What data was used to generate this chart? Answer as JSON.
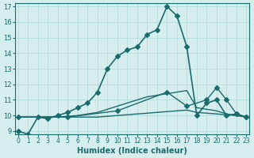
{
  "xlabel": "Humidex (Indice chaleur)",
  "ylabel": "",
  "background_color": "#d6eeee",
  "line_color": "#1a6b6b",
  "xlim": [
    0,
    23
  ],
  "ylim": [
    9,
    17
  ],
  "xticks": [
    0,
    1,
    2,
    3,
    4,
    5,
    6,
    7,
    8,
    9,
    10,
    11,
    12,
    13,
    14,
    15,
    16,
    17,
    18,
    19,
    20,
    21,
    22,
    23
  ],
  "yticks": [
    9,
    10,
    11,
    12,
    13,
    14,
    15,
    16,
    17
  ],
  "grid_color": "#b0d8d8",
  "series": [
    {
      "x": [
        0,
        1,
        2,
        3,
        4,
        5,
        6,
        7,
        8,
        9,
        10,
        11,
        12,
        13,
        14,
        15,
        16,
        17,
        18,
        19,
        20,
        21,
        22,
        23
      ],
      "y": [
        9.0,
        8.8,
        9.9,
        9.8,
        10.0,
        10.2,
        10.5,
        10.8,
        11.5,
        13.0,
        13.8,
        14.2,
        14.4,
        15.2,
        15.5,
        17.0,
        16.4,
        14.4,
        10.0,
        10.8,
        11.0,
        10.0,
        10.1,
        9.9
      ],
      "marker": "D",
      "markersize": 3,
      "linewidth": 1.2
    },
    {
      "x": [
        0,
        1,
        2,
        3,
        4,
        5,
        6,
        7,
        8,
        9,
        10,
        11,
        12,
        13,
        14,
        15,
        16,
        17,
        18,
        19,
        20,
        21,
        22,
        23
      ],
      "y": [
        9.9,
        9.9,
        9.9,
        9.9,
        9.9,
        9.95,
        10.0,
        10.1,
        10.2,
        10.4,
        10.6,
        10.8,
        11.0,
        11.2,
        11.3,
        11.4,
        11.5,
        11.6,
        10.5,
        10.4,
        10.3,
        10.1,
        10.0,
        9.9
      ],
      "marker": null,
      "markersize": 0,
      "linewidth": 1.0
    },
    {
      "x": [
        0,
        1,
        2,
        3,
        4,
        5,
        6,
        7,
        8,
        9,
        10,
        11,
        12,
        13,
        14,
        15,
        16,
        17,
        18,
        19,
        20,
        21,
        22,
        23
      ],
      "y": [
        9.9,
        9.9,
        9.9,
        9.9,
        9.9,
        9.9,
        9.9,
        9.9,
        9.9,
        9.95,
        10.0,
        10.05,
        10.1,
        10.15,
        10.2,
        10.25,
        10.3,
        10.35,
        10.2,
        10.15,
        10.1,
        10.05,
        10.0,
        9.9
      ],
      "marker": null,
      "markersize": 0,
      "linewidth": 1.0
    },
    {
      "x": [
        0,
        5,
        10,
        15,
        17,
        19,
        20,
        21,
        22,
        23
      ],
      "y": [
        9.9,
        9.9,
        10.3,
        11.5,
        10.6,
        11.0,
        11.8,
        11.0,
        10.1,
        9.9
      ],
      "marker": "D",
      "markersize": 3,
      "linewidth": 1.0
    }
  ]
}
